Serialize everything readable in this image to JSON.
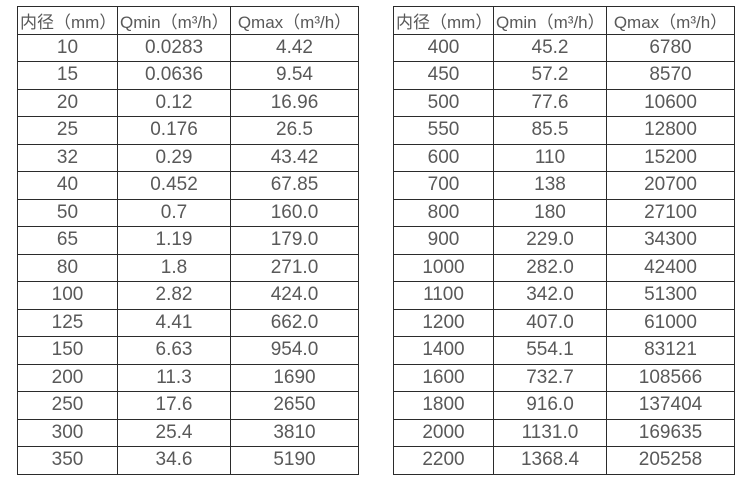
{
  "page": {
    "background_color": "#ffffff",
    "text_color": "#595959",
    "border_color": "#2b2b2b"
  },
  "tables": [
    {
      "name": "flow-table-small-diameters",
      "headers": [
        "内径（mm）",
        "Qmin（m³/h）",
        "Qmax（m³/h）"
      ],
      "rows": [
        [
          "10",
          "0.0283",
          "4.42"
        ],
        [
          "15",
          "0.0636",
          "9.54"
        ],
        [
          "20",
          "0.12",
          "16.96"
        ],
        [
          "25",
          "0.176",
          "26.5"
        ],
        [
          "32",
          "0.29",
          "43.42"
        ],
        [
          "40",
          "0.452",
          "67.85"
        ],
        [
          "50",
          "0.7",
          "160.0"
        ],
        [
          "65",
          "1.19",
          "179.0"
        ],
        [
          "80",
          "1.8",
          "271.0"
        ],
        [
          "100",
          "2.82",
          "424.0"
        ],
        [
          "125",
          "4.41",
          "662.0"
        ],
        [
          "150",
          "6.63",
          "954.0"
        ],
        [
          "200",
          "11.3",
          "1690"
        ],
        [
          "250",
          "17.6",
          "2650"
        ],
        [
          "300",
          "25.4",
          "3810"
        ],
        [
          "350",
          "34.6",
          "5190"
        ]
      ]
    },
    {
      "name": "flow-table-large-diameters",
      "headers": [
        "内径（mm）",
        "Qmin（m³/h）",
        "Qmax（m³/h）"
      ],
      "rows": [
        [
          "400",
          "45.2",
          "6780"
        ],
        [
          "450",
          "57.2",
          "8570"
        ],
        [
          "500",
          "77.6",
          "10600"
        ],
        [
          "550",
          "85.5",
          "12800"
        ],
        [
          "600",
          "110",
          "15200"
        ],
        [
          "700",
          "138",
          "20700"
        ],
        [
          "800",
          "180",
          "27100"
        ],
        [
          "900",
          "229.0",
          "34300"
        ],
        [
          "1000",
          "282.0",
          "42400"
        ],
        [
          "1100",
          "342.0",
          "51300"
        ],
        [
          "1200",
          "407.0",
          "61000"
        ],
        [
          "1400",
          "554.1",
          "83121"
        ],
        [
          "1600",
          "732.7",
          "108566"
        ],
        [
          "1800",
          "916.0",
          "137404"
        ],
        [
          "2000",
          "1131.0",
          "169635"
        ],
        [
          "2200",
          "1368.4",
          "205258"
        ]
      ]
    }
  ]
}
